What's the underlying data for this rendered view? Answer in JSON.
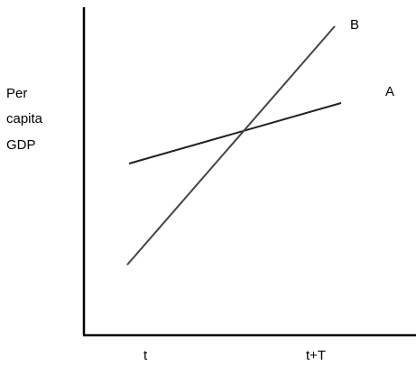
{
  "chart_data": {
    "type": "line",
    "ylabel_lines": [
      "Per",
      "capita",
      "GDP"
    ],
    "x_tick_labels": [
      "t",
      "t+T"
    ],
    "series": [
      {
        "name": "A",
        "color": "#222222"
      },
      {
        "name": "B",
        "color": "#444444"
      }
    ],
    "grid": false
  }
}
